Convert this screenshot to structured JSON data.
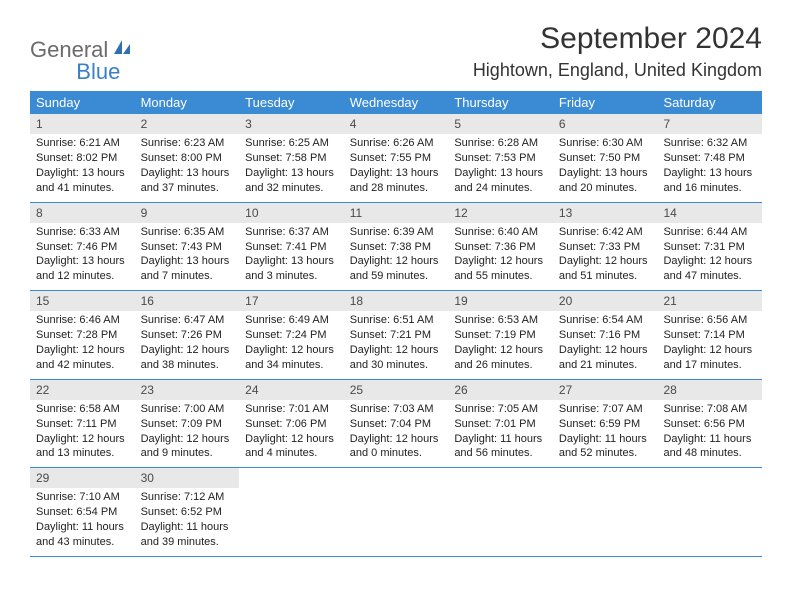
{
  "brand": {
    "part1": "General",
    "part2": "Blue"
  },
  "title": "September 2024",
  "location": "Hightown, England, United Kingdom",
  "colors": {
    "header_bg": "#3b8bd4",
    "header_text": "#ffffff",
    "daynum_bg": "#e8e8e8",
    "daynum_text": "#4a4a4a",
    "rule": "#3b8bd4",
    "body_text": "#222222",
    "logo_gray": "#6b6b6b",
    "logo_blue": "#3b7fc4"
  },
  "typography": {
    "title_fontsize": 30,
    "location_fontsize": 18,
    "dayhead_fontsize": 13,
    "daynum_fontsize": 12,
    "cell_fontsize": 11
  },
  "day_headers": [
    "Sunday",
    "Monday",
    "Tuesday",
    "Wednesday",
    "Thursday",
    "Friday",
    "Saturday"
  ],
  "weeks": [
    [
      {
        "num": "1",
        "sunrise": "Sunrise: 6:21 AM",
        "sunset": "Sunset: 8:02 PM",
        "day1": "Daylight: 13 hours",
        "day2": "and 41 minutes."
      },
      {
        "num": "2",
        "sunrise": "Sunrise: 6:23 AM",
        "sunset": "Sunset: 8:00 PM",
        "day1": "Daylight: 13 hours",
        "day2": "and 37 minutes."
      },
      {
        "num": "3",
        "sunrise": "Sunrise: 6:25 AM",
        "sunset": "Sunset: 7:58 PM",
        "day1": "Daylight: 13 hours",
        "day2": "and 32 minutes."
      },
      {
        "num": "4",
        "sunrise": "Sunrise: 6:26 AM",
        "sunset": "Sunset: 7:55 PM",
        "day1": "Daylight: 13 hours",
        "day2": "and 28 minutes."
      },
      {
        "num": "5",
        "sunrise": "Sunrise: 6:28 AM",
        "sunset": "Sunset: 7:53 PM",
        "day1": "Daylight: 13 hours",
        "day2": "and 24 minutes."
      },
      {
        "num": "6",
        "sunrise": "Sunrise: 6:30 AM",
        "sunset": "Sunset: 7:50 PM",
        "day1": "Daylight: 13 hours",
        "day2": "and 20 minutes."
      },
      {
        "num": "7",
        "sunrise": "Sunrise: 6:32 AM",
        "sunset": "Sunset: 7:48 PM",
        "day1": "Daylight: 13 hours",
        "day2": "and 16 minutes."
      }
    ],
    [
      {
        "num": "8",
        "sunrise": "Sunrise: 6:33 AM",
        "sunset": "Sunset: 7:46 PM",
        "day1": "Daylight: 13 hours",
        "day2": "and 12 minutes."
      },
      {
        "num": "9",
        "sunrise": "Sunrise: 6:35 AM",
        "sunset": "Sunset: 7:43 PM",
        "day1": "Daylight: 13 hours",
        "day2": "and 7 minutes."
      },
      {
        "num": "10",
        "sunrise": "Sunrise: 6:37 AM",
        "sunset": "Sunset: 7:41 PM",
        "day1": "Daylight: 13 hours",
        "day2": "and 3 minutes."
      },
      {
        "num": "11",
        "sunrise": "Sunrise: 6:39 AM",
        "sunset": "Sunset: 7:38 PM",
        "day1": "Daylight: 12 hours",
        "day2": "and 59 minutes."
      },
      {
        "num": "12",
        "sunrise": "Sunrise: 6:40 AM",
        "sunset": "Sunset: 7:36 PM",
        "day1": "Daylight: 12 hours",
        "day2": "and 55 minutes."
      },
      {
        "num": "13",
        "sunrise": "Sunrise: 6:42 AM",
        "sunset": "Sunset: 7:33 PM",
        "day1": "Daylight: 12 hours",
        "day2": "and 51 minutes."
      },
      {
        "num": "14",
        "sunrise": "Sunrise: 6:44 AM",
        "sunset": "Sunset: 7:31 PM",
        "day1": "Daylight: 12 hours",
        "day2": "and 47 minutes."
      }
    ],
    [
      {
        "num": "15",
        "sunrise": "Sunrise: 6:46 AM",
        "sunset": "Sunset: 7:28 PM",
        "day1": "Daylight: 12 hours",
        "day2": "and 42 minutes."
      },
      {
        "num": "16",
        "sunrise": "Sunrise: 6:47 AM",
        "sunset": "Sunset: 7:26 PM",
        "day1": "Daylight: 12 hours",
        "day2": "and 38 minutes."
      },
      {
        "num": "17",
        "sunrise": "Sunrise: 6:49 AM",
        "sunset": "Sunset: 7:24 PM",
        "day1": "Daylight: 12 hours",
        "day2": "and 34 minutes."
      },
      {
        "num": "18",
        "sunrise": "Sunrise: 6:51 AM",
        "sunset": "Sunset: 7:21 PM",
        "day1": "Daylight: 12 hours",
        "day2": "and 30 minutes."
      },
      {
        "num": "19",
        "sunrise": "Sunrise: 6:53 AM",
        "sunset": "Sunset: 7:19 PM",
        "day1": "Daylight: 12 hours",
        "day2": "and 26 minutes."
      },
      {
        "num": "20",
        "sunrise": "Sunrise: 6:54 AM",
        "sunset": "Sunset: 7:16 PM",
        "day1": "Daylight: 12 hours",
        "day2": "and 21 minutes."
      },
      {
        "num": "21",
        "sunrise": "Sunrise: 6:56 AM",
        "sunset": "Sunset: 7:14 PM",
        "day1": "Daylight: 12 hours",
        "day2": "and 17 minutes."
      }
    ],
    [
      {
        "num": "22",
        "sunrise": "Sunrise: 6:58 AM",
        "sunset": "Sunset: 7:11 PM",
        "day1": "Daylight: 12 hours",
        "day2": "and 13 minutes."
      },
      {
        "num": "23",
        "sunrise": "Sunrise: 7:00 AM",
        "sunset": "Sunset: 7:09 PM",
        "day1": "Daylight: 12 hours",
        "day2": "and 9 minutes."
      },
      {
        "num": "24",
        "sunrise": "Sunrise: 7:01 AM",
        "sunset": "Sunset: 7:06 PM",
        "day1": "Daylight: 12 hours",
        "day2": "and 4 minutes."
      },
      {
        "num": "25",
        "sunrise": "Sunrise: 7:03 AM",
        "sunset": "Sunset: 7:04 PM",
        "day1": "Daylight: 12 hours",
        "day2": "and 0 minutes."
      },
      {
        "num": "26",
        "sunrise": "Sunrise: 7:05 AM",
        "sunset": "Sunset: 7:01 PM",
        "day1": "Daylight: 11 hours",
        "day2": "and 56 minutes."
      },
      {
        "num": "27",
        "sunrise": "Sunrise: 7:07 AM",
        "sunset": "Sunset: 6:59 PM",
        "day1": "Daylight: 11 hours",
        "day2": "and 52 minutes."
      },
      {
        "num": "28",
        "sunrise": "Sunrise: 7:08 AM",
        "sunset": "Sunset: 6:56 PM",
        "day1": "Daylight: 11 hours",
        "day2": "and 48 minutes."
      }
    ],
    [
      {
        "num": "29",
        "sunrise": "Sunrise: 7:10 AM",
        "sunset": "Sunset: 6:54 PM",
        "day1": "Daylight: 11 hours",
        "day2": "and 43 minutes."
      },
      {
        "num": "30",
        "sunrise": "Sunrise: 7:12 AM",
        "sunset": "Sunset: 6:52 PM",
        "day1": "Daylight: 11 hours",
        "day2": "and 39 minutes."
      },
      null,
      null,
      null,
      null,
      null
    ]
  ]
}
